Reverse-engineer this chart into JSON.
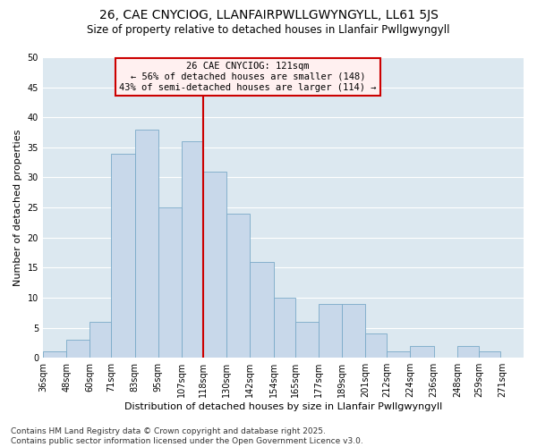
{
  "title": "26, CAE CNYCIOG, LLANFAIRPWLLGWYNGYLL, LL61 5JS",
  "subtitle": "Size of property relative to detached houses in Llanfair Pwllgwyngyll",
  "xlabel": "Distribution of detached houses by size in Llanfair Pwllgwyngyll",
  "ylabel": "Number of detached properties",
  "bin_labels": [
    "36sqm",
    "48sqm",
    "60sqm",
    "71sqm",
    "83sqm",
    "95sqm",
    "107sqm",
    "118sqm",
    "130sqm",
    "142sqm",
    "154sqm",
    "165sqm",
    "177sqm",
    "189sqm",
    "201sqm",
    "212sqm",
    "224sqm",
    "236sqm",
    "248sqm",
    "259sqm",
    "271sqm"
  ],
  "bin_edges": [
    36,
    48,
    60,
    71,
    83,
    95,
    107,
    118,
    130,
    142,
    154,
    165,
    177,
    189,
    201,
    212,
    224,
    236,
    248,
    259,
    271
  ],
  "bar_heights": [
    1,
    3,
    6,
    34,
    38,
    25,
    36,
    31,
    24,
    16,
    10,
    6,
    9,
    9,
    4,
    1,
    2,
    0,
    2,
    1
  ],
  "bar_color": "#c8d8ea",
  "bar_edge_color": "#7aaac8",
  "grid_color": "#ffffff",
  "ax_bg_color": "#dce8f0",
  "vline_x": 118,
  "vline_color": "#cc0000",
  "annotation_title": "26 CAE CNYCIOG: 121sqm",
  "annotation_line1": "← 56% of detached houses are smaller (148)",
  "annotation_line2": "43% of semi-detached houses are larger (114) →",
  "annotation_box_facecolor": "#fff0f0",
  "annotation_box_edge": "#cc0000",
  "ylim": [
    0,
    50
  ],
  "yticks": [
    0,
    5,
    10,
    15,
    20,
    25,
    30,
    35,
    40,
    45,
    50
  ],
  "footer_line1": "Contains HM Land Registry data © Crown copyright and database right 2025.",
  "footer_line2": "Contains public sector information licensed under the Open Government Licence v3.0.",
  "background_color": "#ffffff",
  "title_fontsize": 10,
  "subtitle_fontsize": 8.5,
  "xlabel_fontsize": 8,
  "ylabel_fontsize": 8,
  "tick_fontsize": 7,
  "footer_fontsize": 6.5,
  "ann_fontsize": 7.5
}
